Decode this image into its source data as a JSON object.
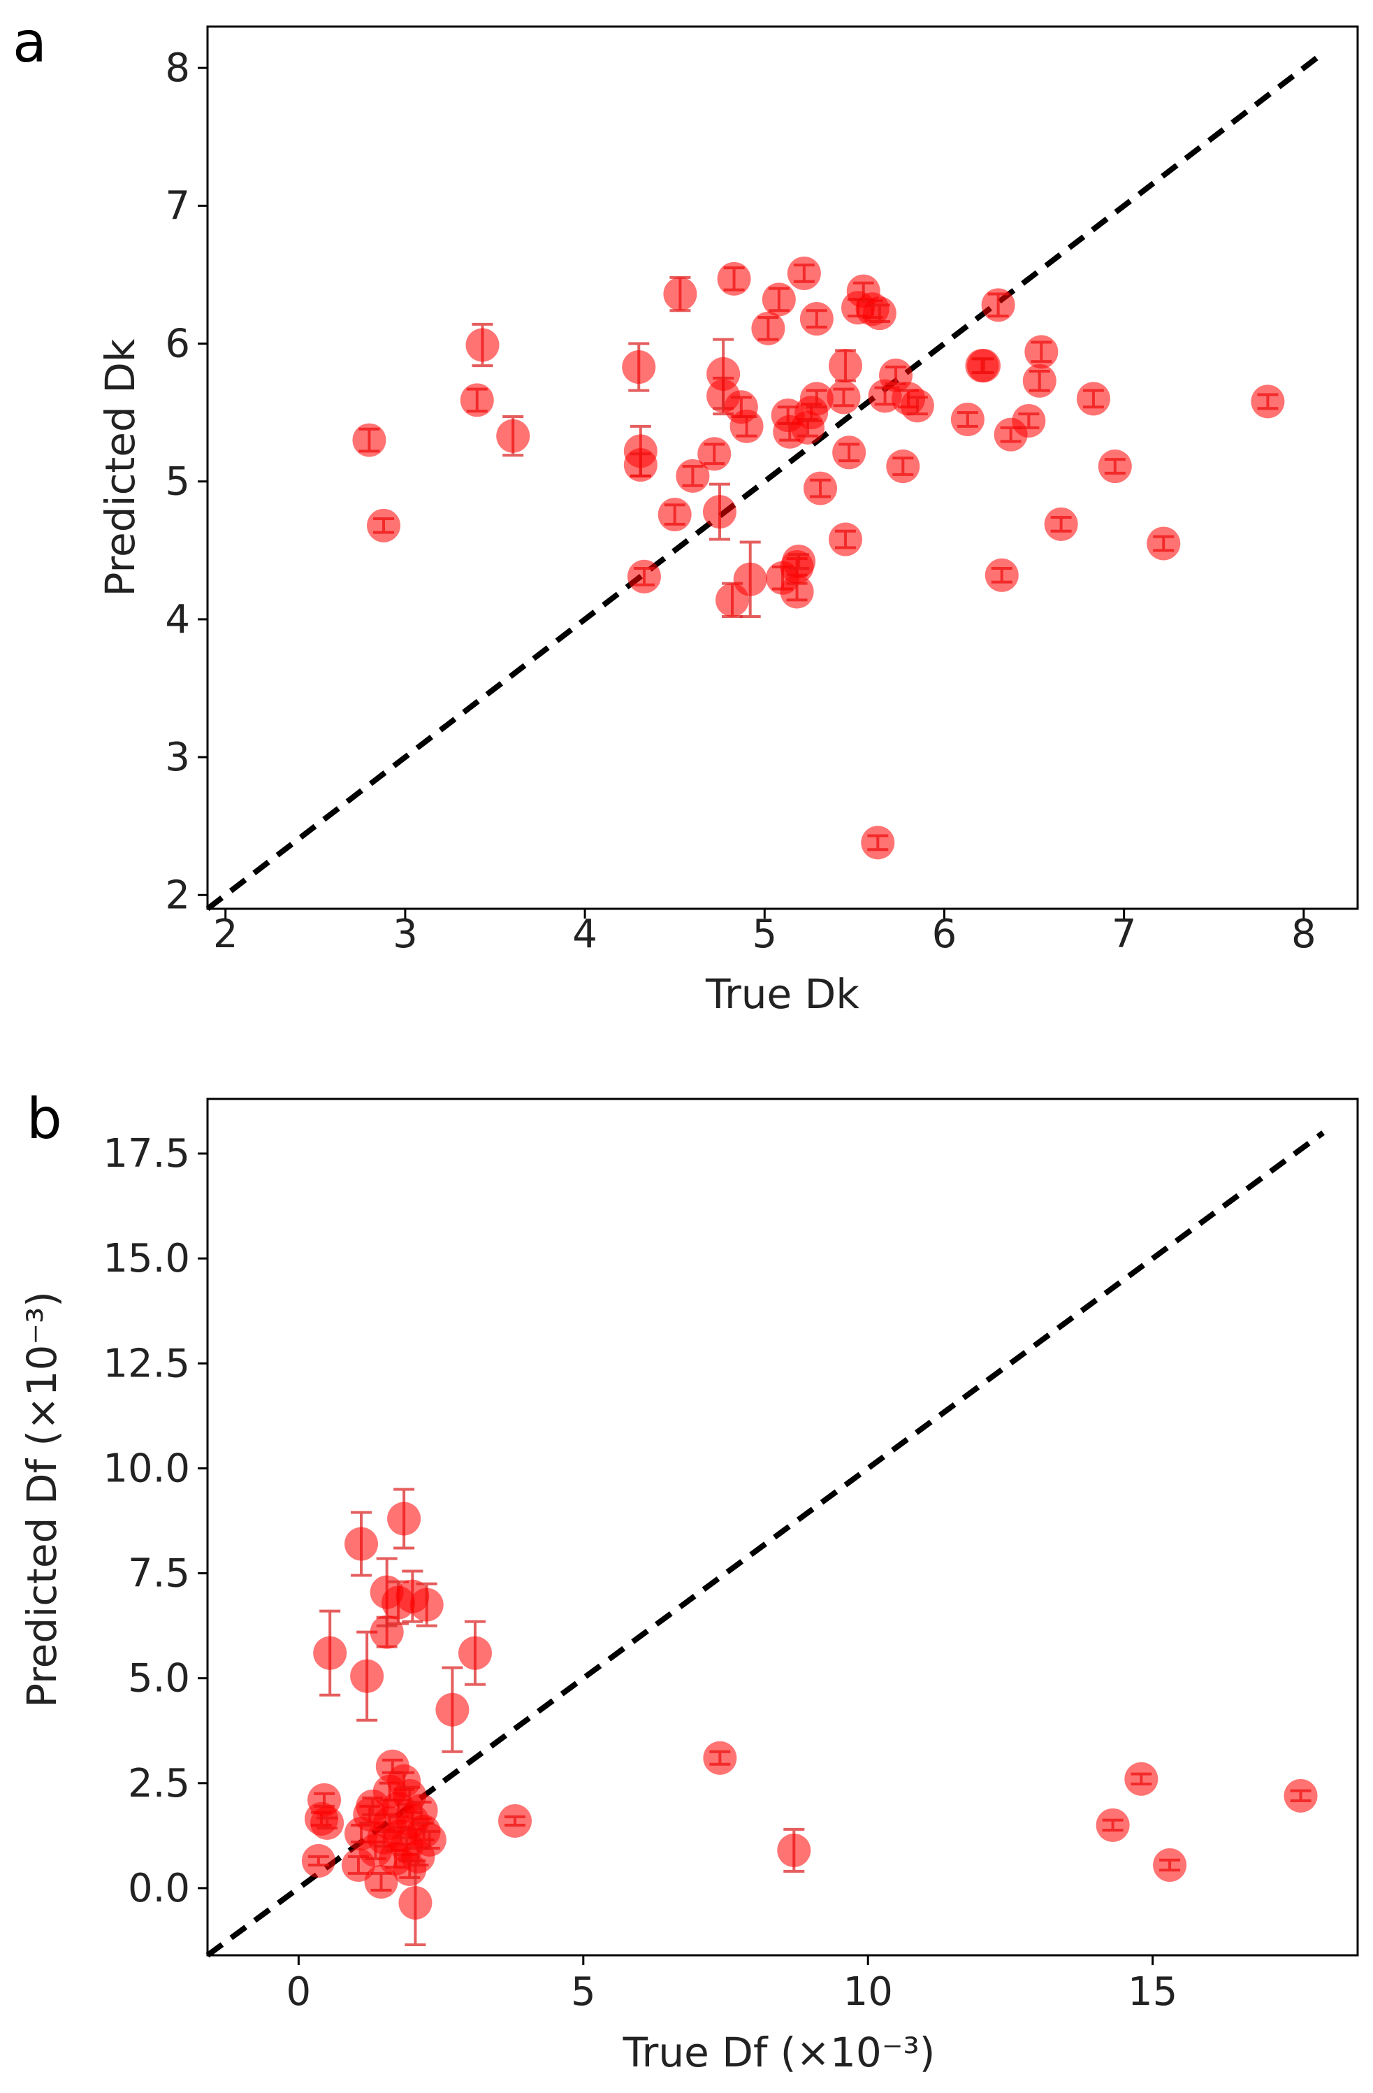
{
  "chart_data": [
    {
      "type": "scatter",
      "panel": "a",
      "xlabel": "True Dk",
      "ylabel": "Predicted Dk",
      "xlim": [
        1.9,
        8.3
      ],
      "ylim": [
        1.9,
        8.3
      ],
      "xticks": [
        "2",
        "3",
        "4",
        "5",
        "6",
        "7",
        "8"
      ],
      "yticks": [
        "2",
        "3",
        "4",
        "5",
        "6",
        "7",
        "8"
      ],
      "identity_line": true,
      "marker_color": "#ff0000",
      "points": [
        {
          "x": 2.8,
          "y": 5.3,
          "err": 0.08
        },
        {
          "x": 2.88,
          "y": 4.68,
          "err": 0.05
        },
        {
          "x": 3.4,
          "y": 5.59,
          "err": 0.08
        },
        {
          "x": 3.43,
          "y": 5.99,
          "err": 0.15
        },
        {
          "x": 3.6,
          "y": 5.33,
          "err": 0.14
        },
        {
          "x": 4.3,
          "y": 5.83,
          "err": 0.17
        },
        {
          "x": 4.31,
          "y": 5.22,
          "err": 0.18
        },
        {
          "x": 4.31,
          "y": 5.12,
          "err": 0.08
        },
        {
          "x": 4.33,
          "y": 4.31,
          "err": 0.06
        },
        {
          "x": 4.5,
          "y": 4.76,
          "err": 0.07
        },
        {
          "x": 4.53,
          "y": 6.36,
          "err": 0.12
        },
        {
          "x": 4.6,
          "y": 5.04,
          "err": 0.07
        },
        {
          "x": 4.72,
          "y": 5.2,
          "err": 0.07
        },
        {
          "x": 4.75,
          "y": 4.78,
          "err": 0.2
        },
        {
          "x": 4.77,
          "y": 5.62,
          "err": 0.13
        },
        {
          "x": 4.77,
          "y": 5.78,
          "err": 0.25
        },
        {
          "x": 4.82,
          "y": 4.14,
          "err": 0.12
        },
        {
          "x": 4.83,
          "y": 6.47,
          "err": 0.08
        },
        {
          "x": 4.87,
          "y": 5.54,
          "err": 0.07
        },
        {
          "x": 4.9,
          "y": 5.4,
          "err": 0.07
        },
        {
          "x": 4.92,
          "y": 4.29,
          "err": 0.27
        },
        {
          "x": 5.02,
          "y": 6.11,
          "err": 0.08
        },
        {
          "x": 5.08,
          "y": 6.32,
          "err": 0.08
        },
        {
          "x": 5.1,
          "y": 4.3,
          "err": 0.08
        },
        {
          "x": 5.13,
          "y": 5.48,
          "err": 0.06
        },
        {
          "x": 5.14,
          "y": 5.36,
          "err": 0.06
        },
        {
          "x": 5.18,
          "y": 4.2,
          "err": 0.06
        },
        {
          "x": 5.18,
          "y": 4.38,
          "err": 0.06
        },
        {
          "x": 5.19,
          "y": 4.42,
          "err": 0.05
        },
        {
          "x": 5.22,
          "y": 6.51,
          "err": 0.06
        },
        {
          "x": 5.24,
          "y": 5.39,
          "err": 0.06
        },
        {
          "x": 5.26,
          "y": 5.5,
          "err": 0.06
        },
        {
          "x": 5.29,
          "y": 5.6,
          "err": 0.06
        },
        {
          "x": 5.29,
          "y": 6.18,
          "err": 0.06
        },
        {
          "x": 5.31,
          "y": 4.95,
          "err": 0.06
        },
        {
          "x": 5.44,
          "y": 5.61,
          "err": 0.06
        },
        {
          "x": 5.45,
          "y": 5.84,
          "err": 0.11
        },
        {
          "x": 5.45,
          "y": 4.58,
          "err": 0.06
        },
        {
          "x": 5.47,
          "y": 5.21,
          "err": 0.06
        },
        {
          "x": 5.52,
          "y": 6.26,
          "err": 0.06
        },
        {
          "x": 5.55,
          "y": 6.38,
          "err": 0.06
        },
        {
          "x": 5.6,
          "y": 6.25,
          "err": 0.06
        },
        {
          "x": 5.63,
          "y": 2.38,
          "err": 0.05
        },
        {
          "x": 5.64,
          "y": 6.22,
          "err": 0.06
        },
        {
          "x": 5.67,
          "y": 5.62,
          "err": 0.06
        },
        {
          "x": 5.73,
          "y": 5.77,
          "err": 0.06
        },
        {
          "x": 5.77,
          "y": 5.11,
          "err": 0.06
        },
        {
          "x": 5.8,
          "y": 5.6,
          "err": 0.06
        },
        {
          "x": 5.85,
          "y": 5.55,
          "err": 0.06
        },
        {
          "x": 6.13,
          "y": 5.45,
          "err": 0.05
        },
        {
          "x": 6.21,
          "y": 5.84,
          "err": 0.05
        },
        {
          "x": 6.22,
          "y": 5.84,
          "err": 0.05
        },
        {
          "x": 6.3,
          "y": 6.28,
          "err": 0.08
        },
        {
          "x": 6.32,
          "y": 4.32,
          "err": 0.05
        },
        {
          "x": 6.37,
          "y": 5.34,
          "err": 0.05
        },
        {
          "x": 6.47,
          "y": 5.44,
          "err": 0.05
        },
        {
          "x": 6.53,
          "y": 5.73,
          "err": 0.07
        },
        {
          "x": 6.54,
          "y": 5.94,
          "err": 0.07
        },
        {
          "x": 6.65,
          "y": 4.69,
          "err": 0.05
        },
        {
          "x": 6.83,
          "y": 5.6,
          "err": 0.06
        },
        {
          "x": 6.95,
          "y": 5.11,
          "err": 0.05
        },
        {
          "x": 7.22,
          "y": 4.55,
          "err": 0.05
        },
        {
          "x": 7.8,
          "y": 5.58,
          "err": 0.05
        }
      ]
    },
    {
      "type": "scatter",
      "panel": "b",
      "xlabel": "True Df (×10⁻³)",
      "ylabel": "Predicted Df (×10⁻³)",
      "xlim": [
        -1.6,
        18.6
      ],
      "ylim": [
        -1.6,
        18.8
      ],
      "xticks": [
        "0",
        "5",
        "10",
        "15"
      ],
      "yticks": [
        "0.0",
        "2.5",
        "5.0",
        "7.5",
        "10.0",
        "12.5",
        "15.0",
        "17.5"
      ],
      "identity_line": true,
      "marker_color": "#ff0000",
      "points": [
        {
          "x": 0.35,
          "y": 0.65,
          "err": 0.1
        },
        {
          "x": 0.4,
          "y": 1.65,
          "err": 0.15
        },
        {
          "x": 0.45,
          "y": 2.1,
          "err": 0.15
        },
        {
          "x": 0.5,
          "y": 1.55,
          "err": 0.12
        },
        {
          "x": 0.55,
          "y": 5.6,
          "err": 1.0
        },
        {
          "x": 1.05,
          "y": 0.55,
          "err": 0.2
        },
        {
          "x": 1.1,
          "y": 1.3,
          "err": 0.2
        },
        {
          "x": 1.1,
          "y": 8.2,
          "err": 0.75
        },
        {
          "x": 1.2,
          "y": 5.05,
          "err": 1.05
        },
        {
          "x": 1.25,
          "y": 1.75,
          "err": 0.2
        },
        {
          "x": 1.3,
          "y": 1.95,
          "err": 0.2
        },
        {
          "x": 1.35,
          "y": 0.9,
          "err": 0.2
        },
        {
          "x": 1.45,
          "y": 0.15,
          "err": 0.2
        },
        {
          "x": 1.5,
          "y": 1.2,
          "err": 0.2
        },
        {
          "x": 1.55,
          "y": 6.1,
          "err": 0.35
        },
        {
          "x": 1.55,
          "y": 7.05,
          "err": 0.8
        },
        {
          "x": 1.6,
          "y": 1.55,
          "err": 0.2
        },
        {
          "x": 1.6,
          "y": 2.3,
          "err": 0.2
        },
        {
          "x": 1.65,
          "y": 2.9,
          "err": 0.15
        },
        {
          "x": 1.7,
          "y": 0.7,
          "err": 0.2
        },
        {
          "x": 1.75,
          "y": 6.8,
          "err": 0.5
        },
        {
          "x": 1.75,
          "y": 1.9,
          "err": 0.2
        },
        {
          "x": 1.8,
          "y": 1.25,
          "err": 0.2
        },
        {
          "x": 1.85,
          "y": 2.55,
          "err": 0.2
        },
        {
          "x": 1.85,
          "y": 8.8,
          "err": 0.7
        },
        {
          "x": 1.9,
          "y": 1.0,
          "err": 0.2
        },
        {
          "x": 1.95,
          "y": 0.45,
          "err": 0.2
        },
        {
          "x": 1.95,
          "y": 2.2,
          "err": 0.2
        },
        {
          "x": 2.0,
          "y": 1.6,
          "err": 0.2
        },
        {
          "x": 2.0,
          "y": 6.95,
          "err": 0.6
        },
        {
          "x": 2.05,
          "y": -0.35,
          "err": 1.0
        },
        {
          "x": 2.1,
          "y": 0.75,
          "err": 0.2
        },
        {
          "x": 2.15,
          "y": 1.85,
          "err": 0.2
        },
        {
          "x": 2.2,
          "y": 1.35,
          "err": 0.2
        },
        {
          "x": 2.25,
          "y": 6.75,
          "err": 0.5
        },
        {
          "x": 2.3,
          "y": 1.15,
          "err": 0.2
        },
        {
          "x": 2.7,
          "y": 4.25,
          "err": 1.0
        },
        {
          "x": 3.1,
          "y": 5.6,
          "err": 0.75
        },
        {
          "x": 3.8,
          "y": 1.6,
          "err": 0.1
        },
        {
          "x": 7.4,
          "y": 3.1,
          "err": 0.15
        },
        {
          "x": 8.7,
          "y": 0.9,
          "err": 0.5
        },
        {
          "x": 14.3,
          "y": 1.5,
          "err": 0.12
        },
        {
          "x": 14.8,
          "y": 2.6,
          "err": 0.12
        },
        {
          "x": 15.3,
          "y": 0.55,
          "err": 0.12
        },
        {
          "x": 17.6,
          "y": 2.2,
          "err": 0.12
        }
      ]
    }
  ]
}
